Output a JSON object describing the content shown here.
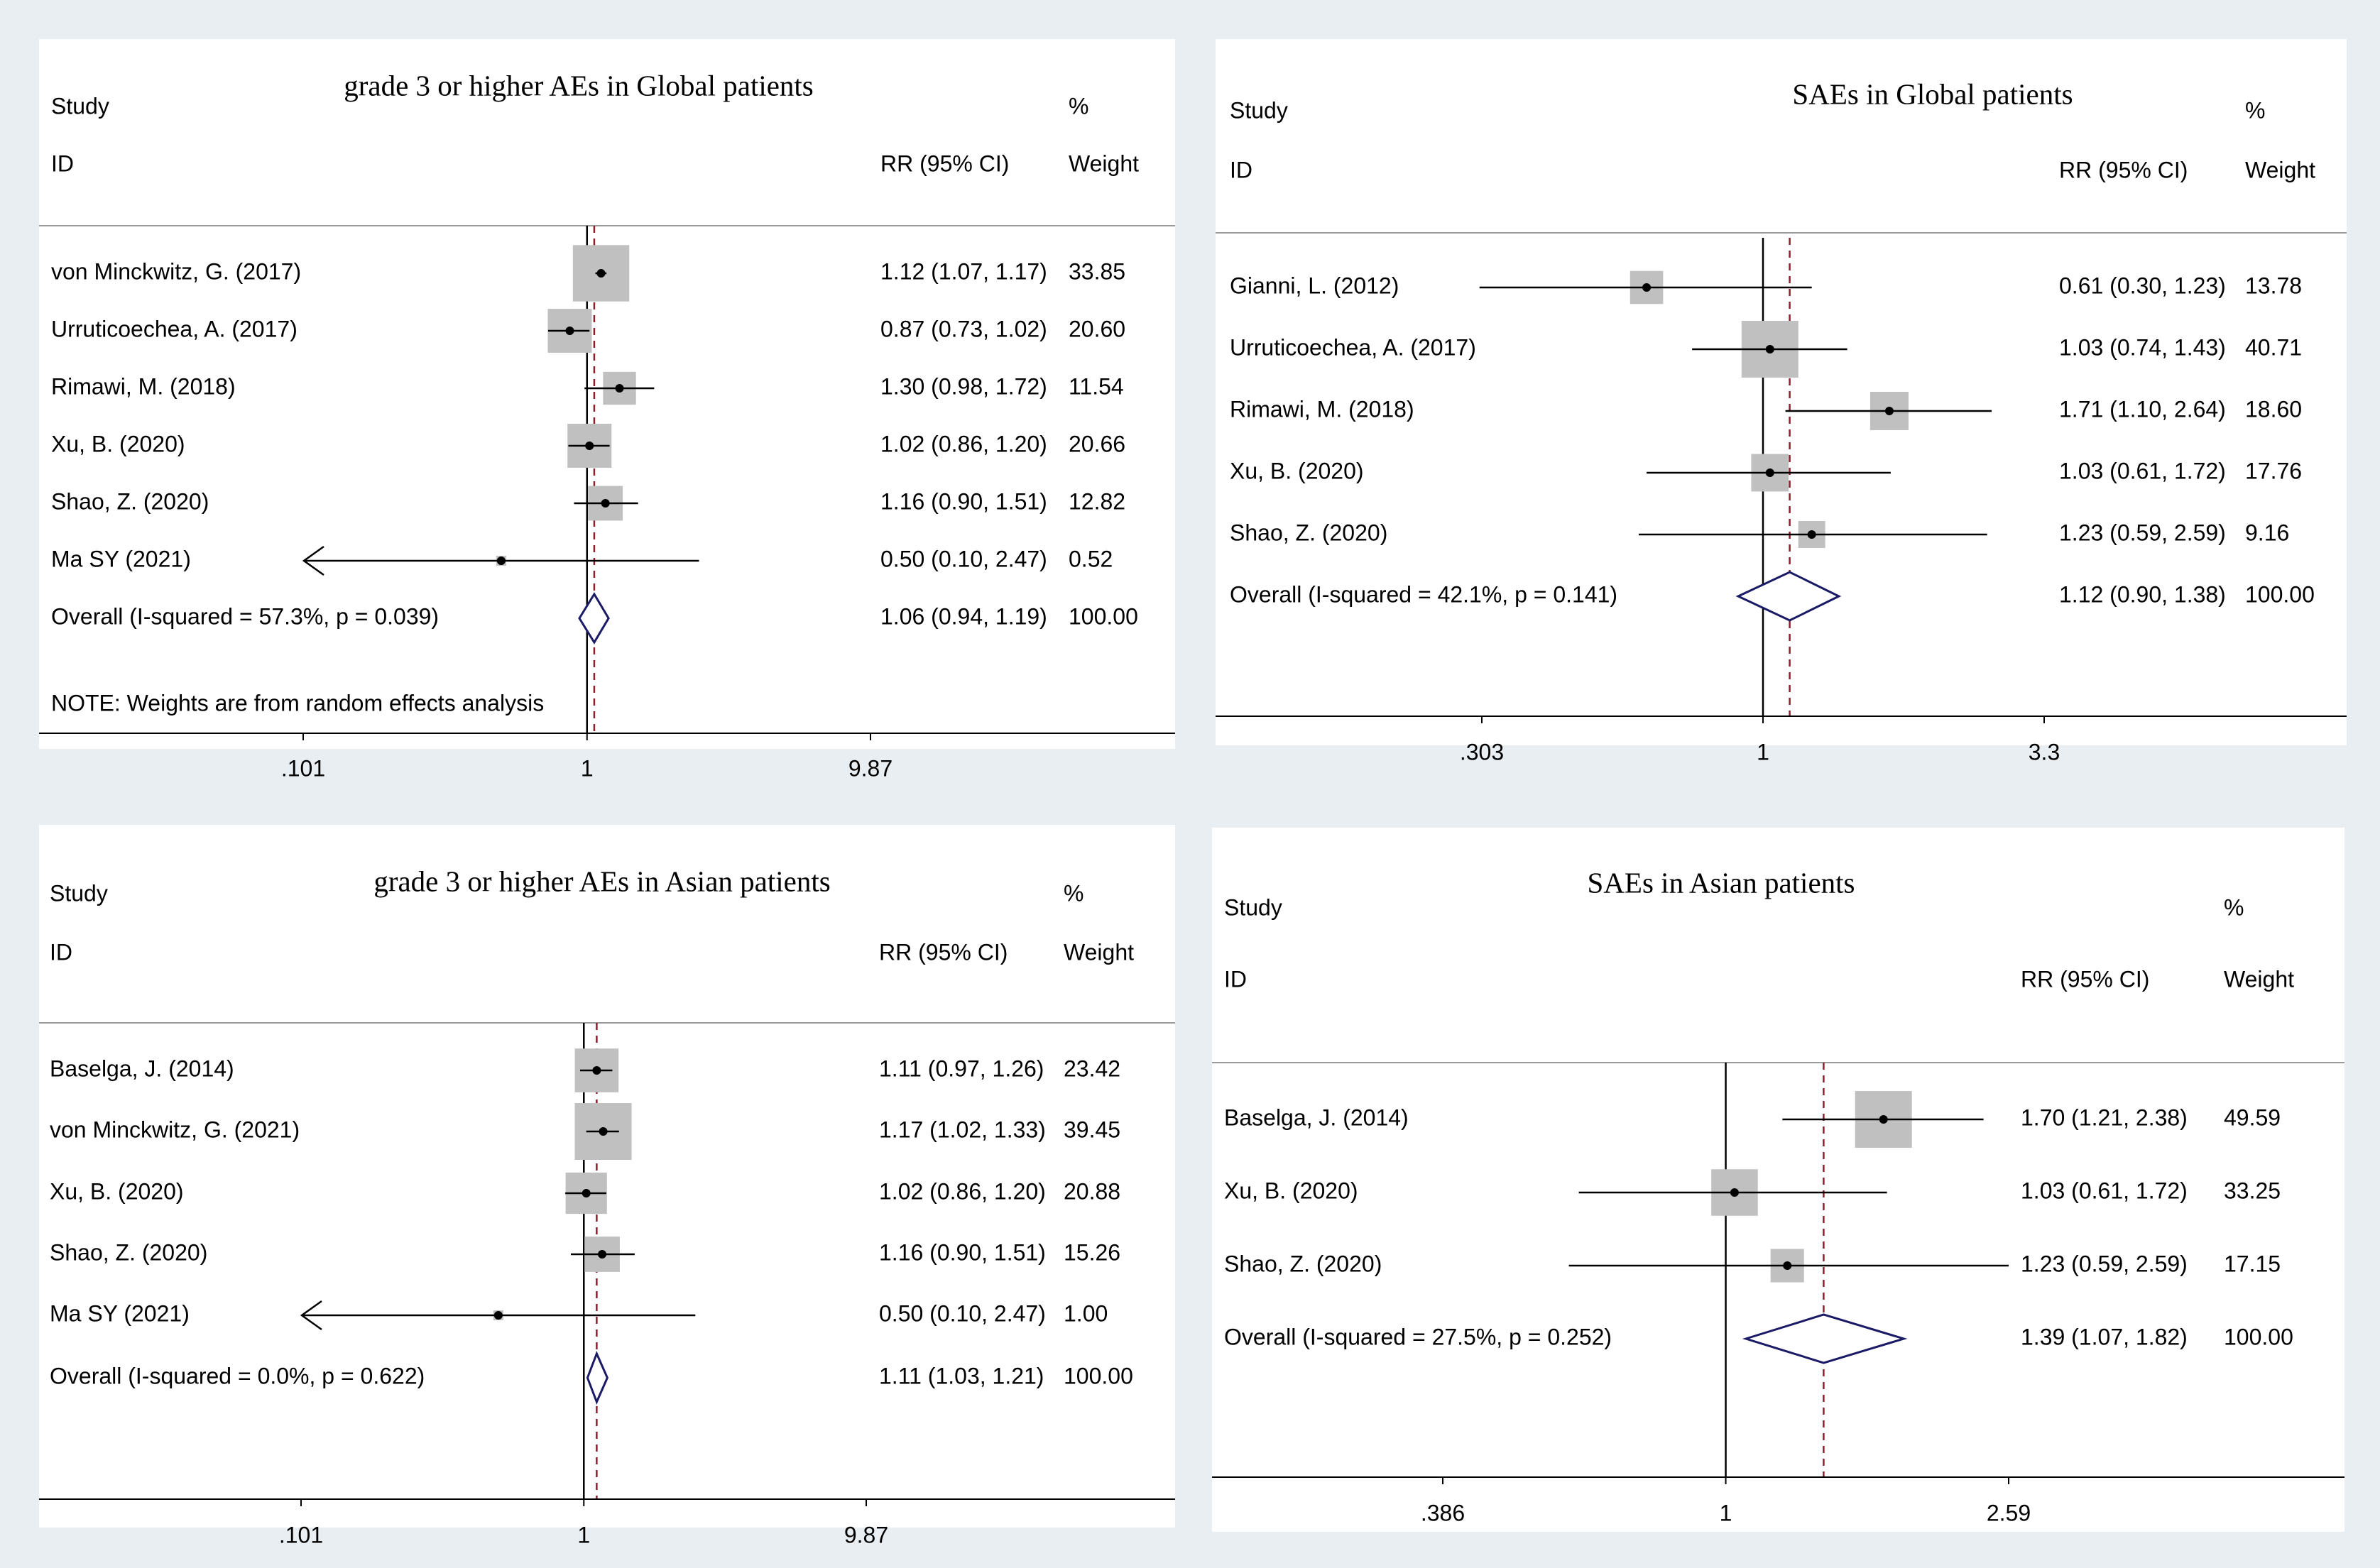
{
  "background_color": "#e9eef3",
  "colors": {
    "box": "#c0c0c0",
    "diamond": "#1a1a66",
    "overall_line": "#8b1f2d"
  },
  "chart_data": [
    {
      "type": "forest",
      "title": "grade 3 or higher AEs in Global patients",
      "header": {
        "study": "Study",
        "id": "ID",
        "pct": "%",
        "rr": "RR (95% CI)",
        "weight": "Weight"
      },
      "x_scale": "log",
      "x_ticks": [
        {
          "value": 0.101,
          "label": ".101"
        },
        {
          "value": 1,
          "label": "1"
        },
        {
          "value": 9.87,
          "label": "9.87"
        }
      ],
      "studies": [
        {
          "id": "von Minckwitz, G. (2017)",
          "rr": 1.12,
          "lo": 1.07,
          "hi": 1.17,
          "rr_text": "1.12 (1.07, 1.17)",
          "weight": 33.85,
          "weight_text": "33.85"
        },
        {
          "id": "Urruticoechea, A. (2017)",
          "rr": 0.87,
          "lo": 0.73,
          "hi": 1.02,
          "rr_text": "0.87 (0.73, 1.02)",
          "weight": 20.6,
          "weight_text": "20.60"
        },
        {
          "id": "Rimawi, M. (2018)",
          "rr": 1.3,
          "lo": 0.98,
          "hi": 1.72,
          "rr_text": "1.30 (0.98, 1.72)",
          "weight": 11.54,
          "weight_text": "11.54"
        },
        {
          "id": "Xu, B. (2020)",
          "rr": 1.02,
          "lo": 0.86,
          "hi": 1.2,
          "rr_text": "1.02 (0.86, 1.20)",
          "weight": 20.66,
          "weight_text": "20.66"
        },
        {
          "id": "Shao, Z. (2020)",
          "rr": 1.16,
          "lo": 0.9,
          "hi": 1.51,
          "rr_text": "1.16 (0.90, 1.51)",
          "weight": 12.82,
          "weight_text": "12.82"
        },
        {
          "id": "Ma SY (2021)",
          "rr": 0.5,
          "lo": 0.1,
          "hi": 2.47,
          "rr_text": "0.50 (0.10, 2.47)",
          "weight": 0.52,
          "weight_text": "0.52",
          "truncated_low": true
        }
      ],
      "overall": {
        "label": "Overall  (I-squared = 57.3%, p = 0.039)",
        "rr": 1.06,
        "lo": 0.94,
        "hi": 1.19,
        "rr_text": "1.06 (0.94, 1.19)",
        "weight_text": "100.00"
      },
      "note": "NOTE: Weights are from random effects analysis"
    },
    {
      "type": "forest",
      "title": "SAEs in Global patients",
      "header": {
        "study": "Study",
        "id": "ID",
        "pct": "%",
        "rr": "RR (95% CI)",
        "weight": "Weight"
      },
      "x_scale": "log",
      "x_ticks": [
        {
          "value": 0.303,
          "label": ".303"
        },
        {
          "value": 1,
          "label": "1"
        },
        {
          "value": 3.3,
          "label": "3.3"
        }
      ],
      "studies": [
        {
          "id": "Gianni, L. (2012)",
          "rr": 0.61,
          "lo": 0.3,
          "hi": 1.23,
          "rr_text": "0.61 (0.30, 1.23)",
          "weight": 13.78,
          "weight_text": "13.78"
        },
        {
          "id": "Urruticoechea, A. (2017)",
          "rr": 1.03,
          "lo": 0.74,
          "hi": 1.43,
          "rr_text": "1.03 (0.74, 1.43)",
          "weight": 40.71,
          "weight_text": "40.71"
        },
        {
          "id": "Rimawi, M. (2018)",
          "rr": 1.71,
          "lo": 1.1,
          "hi": 2.64,
          "rr_text": "1.71 (1.10, 2.64)",
          "weight": 18.6,
          "weight_text": "18.60"
        },
        {
          "id": "Xu, B. (2020)",
          "rr": 1.03,
          "lo": 0.61,
          "hi": 1.72,
          "rr_text": "1.03 (0.61, 1.72)",
          "weight": 17.76,
          "weight_text": "17.76"
        },
        {
          "id": "Shao, Z. (2020)",
          "rr": 1.23,
          "lo": 0.59,
          "hi": 2.59,
          "rr_text": "1.23 (0.59, 2.59)",
          "weight": 9.16,
          "weight_text": "9.16"
        }
      ],
      "overall": {
        "label": "Overall  (I-squared = 42.1%, p = 0.141)",
        "rr": 1.12,
        "lo": 0.9,
        "hi": 1.38,
        "rr_text": "1.12 (0.90, 1.38)",
        "weight_text": "100.00"
      }
    },
    {
      "type": "forest",
      "title": "grade 3 or higher AEs in Asian patients",
      "header": {
        "study": "Study",
        "id": "ID",
        "pct": "%",
        "rr": "RR (95% CI)",
        "weight": "Weight"
      },
      "x_scale": "log",
      "x_ticks": [
        {
          "value": 0.101,
          "label": ".101"
        },
        {
          "value": 1,
          "label": "1"
        },
        {
          "value": 9.87,
          "label": "9.87"
        }
      ],
      "studies": [
        {
          "id": "Baselga, J. (2014)",
          "rr": 1.11,
          "lo": 0.97,
          "hi": 1.26,
          "rr_text": "1.11 (0.97, 1.26)",
          "weight": 23.42,
          "weight_text": "23.42"
        },
        {
          "id": "von Minckwitz, G. (2021)",
          "rr": 1.17,
          "lo": 1.02,
          "hi": 1.33,
          "rr_text": "1.17 (1.02, 1.33)",
          "weight": 39.45,
          "weight_text": "39.45"
        },
        {
          "id": "Xu, B. (2020)",
          "rr": 1.02,
          "lo": 0.86,
          "hi": 1.2,
          "rr_text": "1.02 (0.86, 1.20)",
          "weight": 20.88,
          "weight_text": "20.88"
        },
        {
          "id": "Shao, Z. (2020)",
          "rr": 1.16,
          "lo": 0.9,
          "hi": 1.51,
          "rr_text": "1.16 (0.90, 1.51)",
          "weight": 15.26,
          "weight_text": "15.26"
        },
        {
          "id": "Ma SY (2021)",
          "rr": 0.5,
          "lo": 0.1,
          "hi": 2.47,
          "rr_text": "0.50 (0.10, 2.47)",
          "weight": 1.0,
          "weight_text": "1.00",
          "truncated_low": true
        }
      ],
      "overall": {
        "label": "Overall  (I-squared = 0.0%, p = 0.622)",
        "rr": 1.11,
        "lo": 1.03,
        "hi": 1.21,
        "rr_text": "1.11 (1.03, 1.21)",
        "weight_text": "100.00"
      }
    },
    {
      "type": "forest",
      "title": "SAEs in Asian patients",
      "header": {
        "study": "Study",
        "id": "ID",
        "pct": "%",
        "rr": "RR (95% CI)",
        "weight": "Weight"
      },
      "x_scale": "log",
      "x_ticks": [
        {
          "value": 0.386,
          "label": ".386"
        },
        {
          "value": 1,
          "label": "1"
        },
        {
          "value": 2.59,
          "label": "2.59"
        }
      ],
      "studies": [
        {
          "id": "Baselga, J. (2014)",
          "rr": 1.7,
          "lo": 1.21,
          "hi": 2.38,
          "rr_text": "1.70 (1.21, 2.38)",
          "weight": 49.59,
          "weight_text": "49.59"
        },
        {
          "id": "Xu, B. (2020)",
          "rr": 1.03,
          "lo": 0.61,
          "hi": 1.72,
          "rr_text": "1.03 (0.61, 1.72)",
          "weight": 33.25,
          "weight_text": "33.25"
        },
        {
          "id": "Shao, Z. (2020)",
          "rr": 1.23,
          "lo": 0.59,
          "hi": 2.59,
          "rr_text": "1.23 (0.59, 2.59)",
          "weight": 17.15,
          "weight_text": "17.15"
        }
      ],
      "overall": {
        "label": "Overall  (I-squared = 27.5%, p = 0.252)",
        "rr": 1.39,
        "lo": 1.07,
        "hi": 1.82,
        "rr_text": "1.39 (1.07, 1.82)",
        "weight_text": "100.00"
      }
    }
  ]
}
